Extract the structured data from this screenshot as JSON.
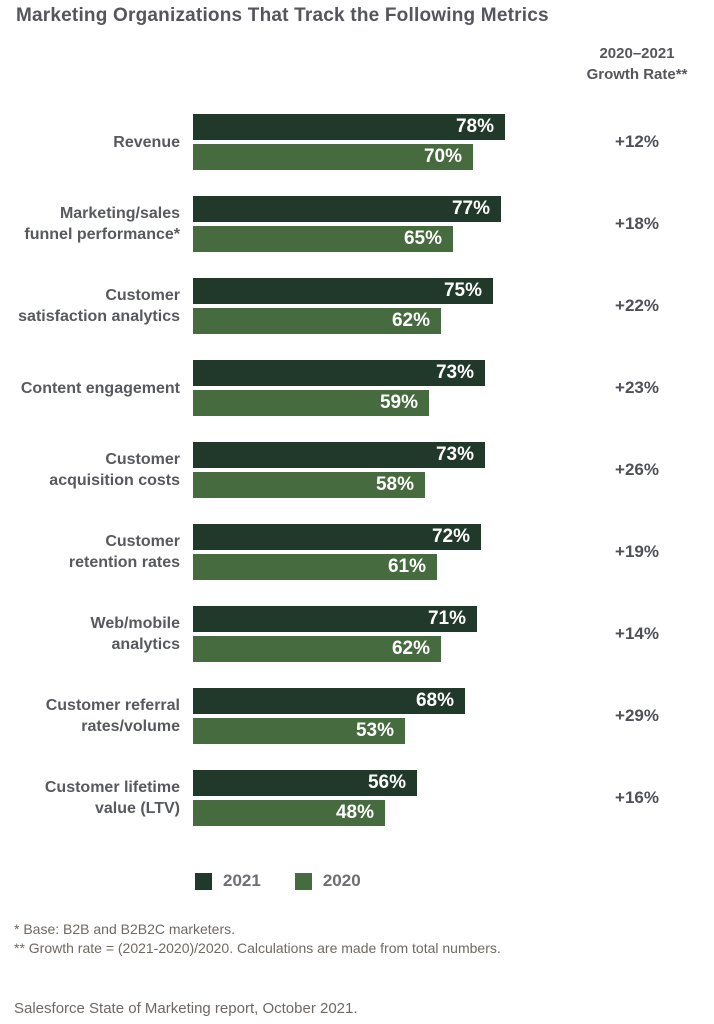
{
  "title": "Marketing Organizations That Track the Following Metrics",
  "growth_header": {
    "line1": "2020–2021",
    "line2": "Growth Rate**"
  },
  "legend": [
    {
      "label": "2021",
      "color": "#20392a"
    },
    {
      "label": "2020",
      "color": "#466b3e"
    }
  ],
  "footnotes": [
    "* Base: B2B and B2B2C marketers.",
    "** Growth rate = (2021-2020)/2020. Calculations are made from total numbers."
  ],
  "source": "Salesforce State of Marketing report, October 2021.",
  "colors": {
    "bar_2021": "#20392a",
    "bar_2020": "#466b3e",
    "value_text": "#ffffff",
    "label_text": "#57595e",
    "growth_text": "#4f5157",
    "title_text": "#54565c",
    "footnote_text": "#6f6962",
    "background": "#ffffff"
  },
  "chart_data": {
    "type": "bar",
    "orientation": "horizontal",
    "title": "Marketing Organizations That Track the Following Metrics",
    "value_suffix": "%",
    "xlim": [
      0,
      100
    ],
    "grid": false,
    "legend_position": "bottom",
    "categories": [
      "Revenue",
      "Marketing/sales\nfunnel performance*",
      "Customer\nsatisfaction analytics",
      "Content engagement",
      "Customer\nacquisition costs",
      "Customer\nretention rates",
      "Web/mobile\nanalytics",
      "Customer referral\nrates/volume",
      "Customer lifetime\nvalue (LTV)"
    ],
    "series": [
      {
        "name": "2021",
        "values": [
          78,
          77,
          75,
          73,
          73,
          72,
          71,
          68,
          56
        ]
      },
      {
        "name": "2020",
        "values": [
          70,
          65,
          62,
          59,
          58,
          61,
          62,
          53,
          48
        ]
      }
    ],
    "growth_rates": [
      "+12%",
      "+18%",
      "+22%",
      "+23%",
      "+26%",
      "+19%",
      "+14%",
      "+29%",
      "+16%"
    ]
  }
}
